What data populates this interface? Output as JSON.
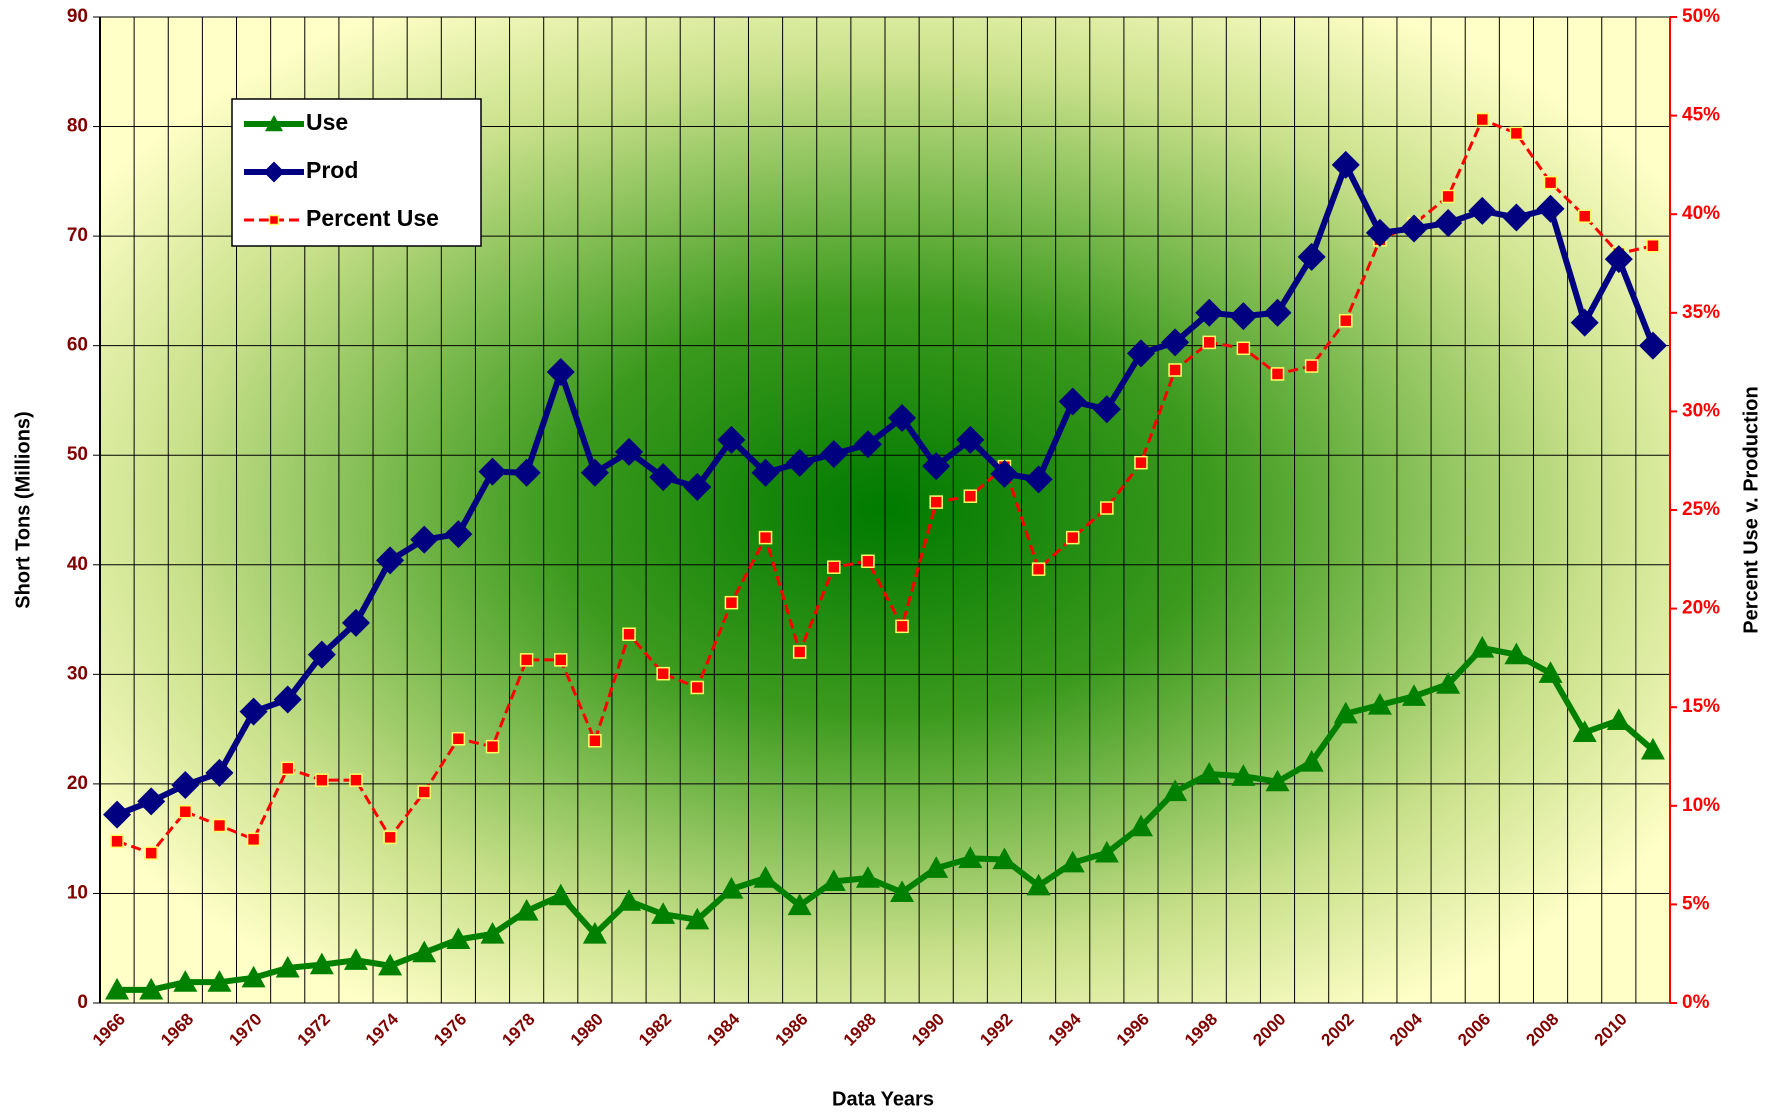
{
  "chart_data": {
    "type": "line",
    "x_label": "Data Years",
    "y_label": "Short Tons (Millions)",
    "y2_label": "Percent Use v. Production",
    "categories": [
      "1966",
      null,
      "1968",
      null,
      "1970",
      null,
      "1972",
      null,
      "1974",
      null,
      "1976",
      null,
      "1978",
      null,
      "1980",
      null,
      "1982",
      null,
      "1984",
      null,
      "1986",
      null,
      "1988",
      null,
      "1990",
      null,
      "1992",
      null,
      "1994",
      null,
      "1996",
      null,
      "1998",
      null,
      "2000",
      null,
      "2002",
      null,
      "2004",
      null,
      "2006",
      null,
      "2008",
      null,
      "2010",
      null
    ],
    "series": [
      {
        "name": "Use",
        "color": "#008000",
        "marker": "triangle",
        "values": [
          1.2,
          1.2,
          1.9,
          1.9,
          2.3,
          3.2,
          3.5,
          3.9,
          3.4,
          4.6,
          5.8,
          6.3,
          8.4,
          9.8,
          6.3,
          9.3,
          8.1,
          7.6,
          10.4,
          11.4,
          8.9,
          11.1,
          11.4,
          10.1,
          12.3,
          13.2,
          13.1,
          10.7,
          12.8,
          13.7,
          16.1,
          19.3,
          20.9,
          20.7,
          20.2,
          22.0,
          26.4,
          27.2,
          28.0,
          29.1,
          32.4,
          31.8,
          30.1,
          24.7,
          25.8,
          23.1
        ]
      },
      {
        "name": "Prod",
        "color": "#000080",
        "marker": "diamond",
        "values": [
          17.2,
          18.4,
          19.9,
          21.0,
          26.6,
          27.7,
          31.8,
          34.7,
          40.4,
          42.3,
          42.8,
          48.5,
          48.4,
          57.6,
          48.4,
          50.3,
          48.0,
          47.1,
          51.4,
          48.4,
          49.3,
          50.1,
          51.0,
          53.4,
          49.0,
          51.4,
          48.3,
          47.8,
          54.9,
          54.2,
          59.3,
          60.3,
          63.0,
          62.7,
          63.0,
          68.1,
          76.5,
          70.3,
          70.7,
          71.2,
          72.3,
          71.7,
          72.5,
          62.1,
          67.9,
          60.0
        ]
      },
      {
        "name": "Percent Use",
        "color": "#ff0000",
        "marker": "square",
        "dashed": true,
        "axis": "y2",
        "values": [
          8.2,
          7.6,
          9.7,
          9.0,
          8.3,
          11.9,
          11.3,
          11.3,
          8.4,
          10.7,
          13.4,
          13.0,
          17.4,
          17.4,
          13.3,
          18.7,
          16.7,
          16.0,
          20.3,
          23.6,
          17.8,
          22.1,
          22.4,
          19.1,
          25.4,
          25.7,
          27.2,
          22.0,
          23.6,
          25.1,
          27.4,
          32.1,
          33.5,
          33.2,
          31.9,
          32.3,
          34.6,
          38.7,
          39.5,
          40.9,
          44.8,
          44.1,
          41.6,
          39.9,
          38.0,
          38.4
        ]
      }
    ],
    "ylim": [
      0,
      90
    ],
    "yticks": [
      0,
      10,
      20,
      30,
      40,
      50,
      60,
      70,
      80,
      90
    ],
    "y2lim": [
      0,
      50
    ],
    "y2ticks": [
      {
        "value": 0,
        "label": "0%"
      },
      {
        "value": 5,
        "label": "5%"
      },
      {
        "value": 10,
        "label": "10%"
      },
      {
        "value": 15,
        "label": "15%"
      },
      {
        "value": 20,
        "label": "20%"
      },
      {
        "value": 25,
        "label": "25%"
      },
      {
        "value": 30,
        "label": "30%"
      },
      {
        "value": 35,
        "label": "35%"
      },
      {
        "value": 40,
        "label": "40%"
      },
      {
        "value": 45,
        "label": "45%"
      },
      {
        "value": 50,
        "label": "50%"
      }
    ],
    "grid": true,
    "legend": "upper left"
  }
}
